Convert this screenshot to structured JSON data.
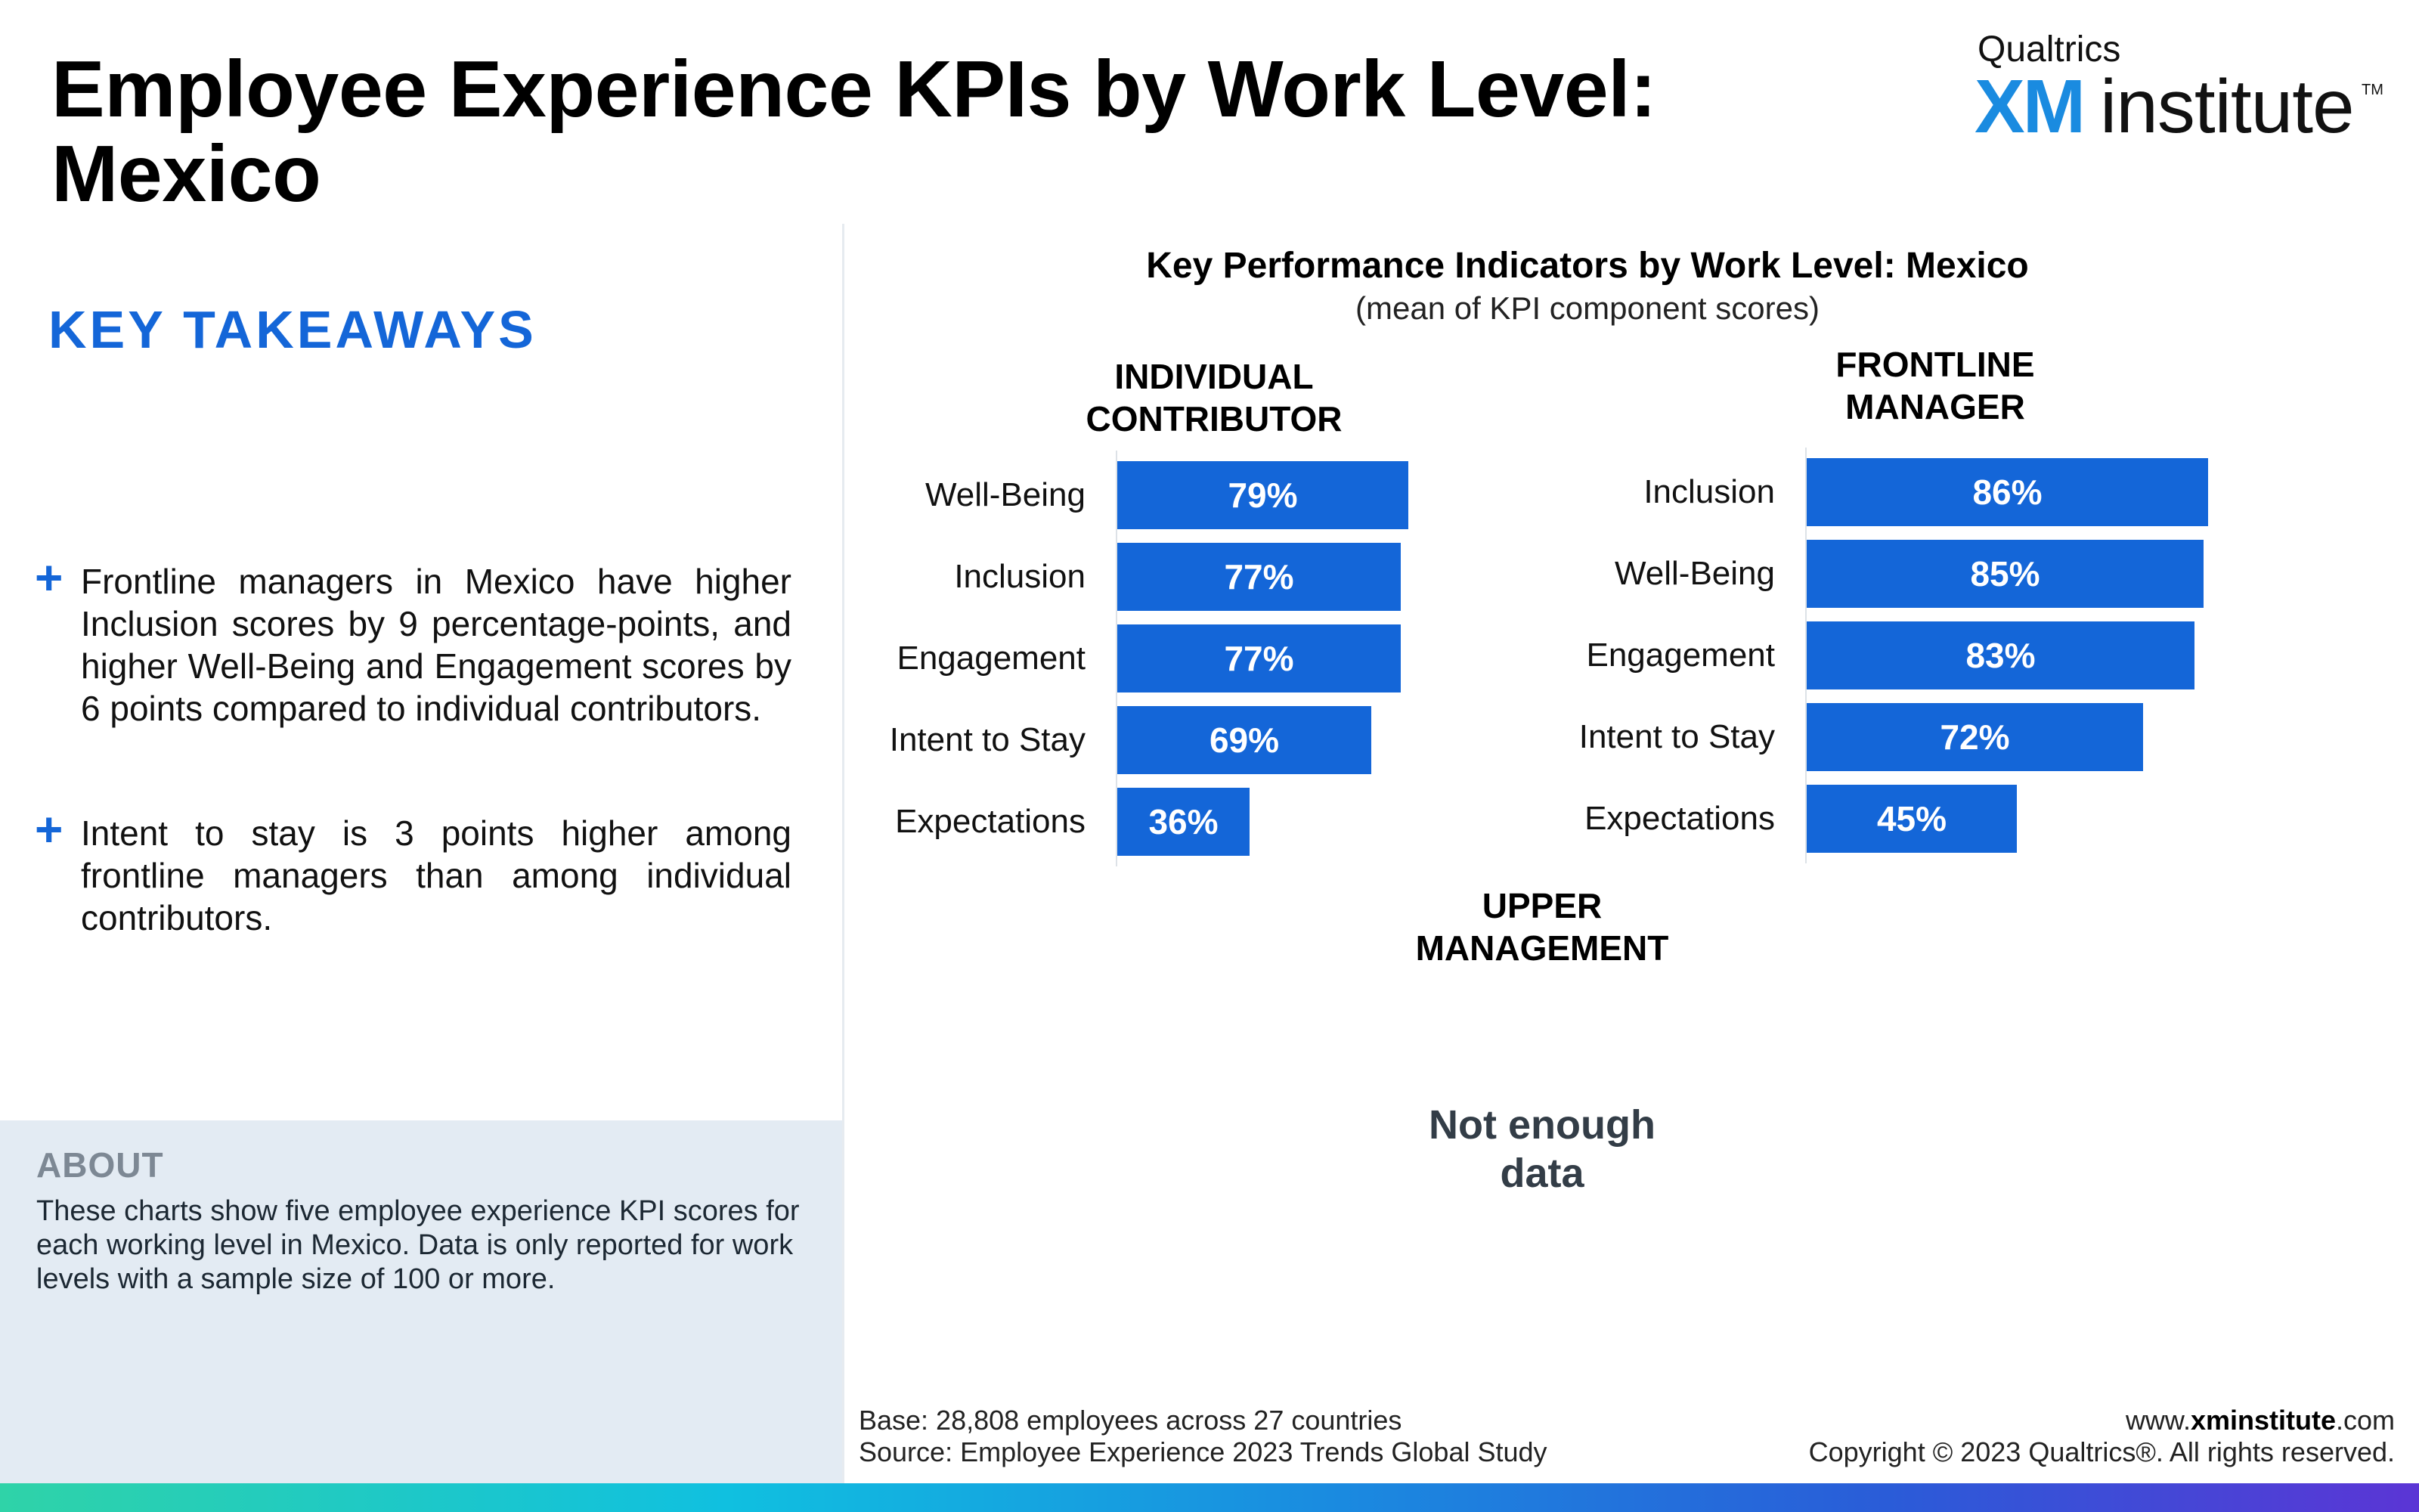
{
  "header": {
    "title": "Employee Experience KPIs by Work Level: Mexico",
    "brand_top": "Qualtrics",
    "brand_xm": "XM",
    "brand_institute": "institute",
    "brand_tm": "TM"
  },
  "takeaways": {
    "heading": "KEY TAKEAWAYS",
    "bullet_symbol": "+",
    "items": [
      "Frontline managers in Mexico have higher Inclusion scores by 9 percentage-points, and higher Well-Being and Engagement scores by 6 points compared to individual contributors.",
      "Intent to stay is 3 points higher among frontline managers than among individual contributors."
    ]
  },
  "about": {
    "title": "ABOUT",
    "text": "These charts show five employee experience KPI scores for each working level in Mexico. Data is only reported for work levels with a sample size of 100 or more."
  },
  "chart_data": {
    "type": "bar",
    "orientation": "horizontal",
    "title": "Key Performance Indicators by Work Level: Mexico",
    "subtitle": "(mean of KPI component scores)",
    "colors": {
      "bar": "#1466d8",
      "label": "#ffffff"
    },
    "xlim": [
      0,
      100
    ],
    "panels": [
      {
        "title_line1": "INDIVIDUAL",
        "title_line2": "CONTRIBUTOR",
        "categories": [
          "Well-Being",
          "Inclusion",
          "Engagement",
          "Intent to Stay",
          "Expectations"
        ],
        "values": [
          79,
          77,
          77,
          69,
          36
        ],
        "labels": [
          "79%",
          "77%",
          "77%",
          "69%",
          "36%"
        ]
      },
      {
        "title_line1": "FRONTLINE",
        "title_line2": "MANAGER",
        "categories": [
          "Inclusion",
          "Well-Being",
          "Engagement",
          "Intent to Stay",
          "Expectations"
        ],
        "values": [
          86,
          85,
          83,
          72,
          45
        ],
        "labels": [
          "86%",
          "85%",
          "83%",
          "72%",
          "45%"
        ]
      },
      {
        "title_line1": "UPPER",
        "title_line2": "MANAGEMENT",
        "no_data_line1": "Not enough",
        "no_data_line2": "data"
      }
    ]
  },
  "footer": {
    "base": "Base: 28,808 employees across 27 countries",
    "source": "Source: Employee Experience 2023 Trends Global Study",
    "website_prefix": "www.",
    "website_bold": "xminstitute",
    "website_suffix": ".com",
    "copyright": "Copyright © 2023 Qualtrics®. All rights reserved."
  }
}
